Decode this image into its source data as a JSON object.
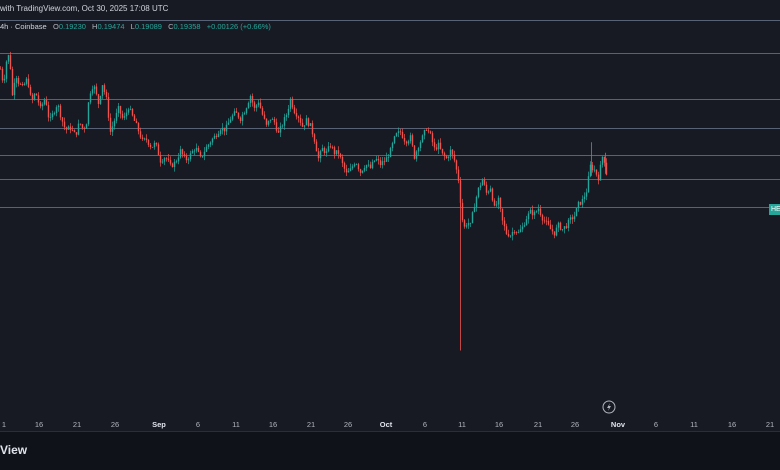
{
  "header": {
    "published_text": "with TradingView.com, Oct 30, 2025 17:08 UTC",
    "interval_exchange": "4h · Coinbase",
    "ohlc": {
      "o_label": "O",
      "o_value": "0.19230",
      "h_label": "H",
      "h_value": "0.19474",
      "l_label": "L",
      "l_value": "0.19089",
      "c_label": "C",
      "c_value": "0.19358",
      "change": "+0.00126 (+0.66%)"
    }
  },
  "price_tag": {
    "label": "HE",
    "color": "#26a69a"
  },
  "footer": {
    "logo_text": "View"
  },
  "colors": {
    "background": "#171a23",
    "up": "#26a69a",
    "down": "#ef5350",
    "level_line": "#8a9bb8",
    "axis_text": "#b2b5be"
  },
  "icons": {
    "replay": "lightning-icon"
  },
  "chart_data": {
    "type": "candlestick",
    "interval": "4h",
    "exchange": "Coinbase",
    "x_ticks": [
      {
        "label": "1"
      },
      {
        "label": "16"
      },
      {
        "label": "21"
      },
      {
        "label": "26"
      },
      {
        "label": "Sep",
        "major": true
      },
      {
        "label": "6"
      },
      {
        "label": "11"
      },
      {
        "label": "16"
      },
      {
        "label": "21"
      },
      {
        "label": "26"
      },
      {
        "label": "Oct",
        "major": true
      },
      {
        "label": "6"
      },
      {
        "label": "11"
      },
      {
        "label": "16"
      },
      {
        "label": "21"
      },
      {
        "label": "26"
      },
      {
        "label": "Nov",
        "major": true
      },
      {
        "label": "6"
      },
      {
        "label": "11"
      },
      {
        "label": "16"
      },
      {
        "label": "21"
      }
    ],
    "ylim": [
      0.09,
      0.29
    ],
    "horizontal_levels": [
      0.2795,
      0.262,
      0.238,
      0.223,
      0.2088,
      0.1964,
      0.1815
    ],
    "path": [
      [
        0,
        0.254
      ],
      [
        3,
        0.246
      ],
      [
        6,
        0.258
      ],
      [
        9,
        0.262
      ],
      [
        12,
        0.24
      ],
      [
        15,
        0.252
      ],
      [
        18,
        0.247
      ],
      [
        22,
        0.244
      ],
      [
        27,
        0.249
      ],
      [
        31,
        0.236
      ],
      [
        35,
        0.242
      ],
      [
        40,
        0.233
      ],
      [
        45,
        0.239
      ],
      [
        49,
        0.226
      ],
      [
        53,
        0.231
      ],
      [
        57,
        0.236
      ],
      [
        61,
        0.228
      ],
      [
        65,
        0.222
      ],
      [
        70,
        0.223
      ],
      [
        75,
        0.219
      ],
      [
        79,
        0.226
      ],
      [
        83,
        0.222
      ],
      [
        86,
        0.226
      ],
      [
        89,
        0.241
      ],
      [
        93,
        0.246
      ],
      [
        98,
        0.236
      ],
      [
        102,
        0.246
      ],
      [
        106,
        0.238
      ],
      [
        110,
        0.221
      ],
      [
        114,
        0.227
      ],
      [
        118,
        0.233
      ],
      [
        123,
        0.227
      ],
      [
        128,
        0.234
      ],
      [
        132,
        0.229
      ],
      [
        137,
        0.223
      ],
      [
        142,
        0.216
      ],
      [
        146,
        0.217
      ],
      [
        151,
        0.213
      ],
      [
        155,
        0.215
      ],
      [
        160,
        0.206
      ],
      [
        165,
        0.208
      ],
      [
        170,
        0.203
      ],
      [
        175,
        0.205
      ],
      [
        180,
        0.211
      ],
      [
        185,
        0.206
      ],
      [
        190,
        0.209
      ],
      [
        195,
        0.213
      ],
      [
        200,
        0.207
      ],
      [
        205,
        0.212
      ],
      [
        210,
        0.216
      ],
      [
        215,
        0.219
      ],
      [
        220,
        0.223
      ],
      [
        225,
        0.222
      ],
      [
        230,
        0.228
      ],
      [
        235,
        0.231
      ],
      [
        240,
        0.228
      ],
      [
        245,
        0.233
      ],
      [
        250,
        0.24
      ],
      [
        254,
        0.233
      ],
      [
        258,
        0.237
      ],
      [
        262,
        0.23
      ],
      [
        266,
        0.224
      ],
      [
        270,
        0.228
      ],
      [
        274,
        0.226
      ],
      [
        278,
        0.22
      ],
      [
        282,
        0.225
      ],
      [
        286,
        0.23
      ],
      [
        290,
        0.238
      ],
      [
        294,
        0.232
      ],
      [
        298,
        0.229
      ],
      [
        302,
        0.224
      ],
      [
        306,
        0.227
      ],
      [
        310,
        0.224
      ],
      [
        314,
        0.217
      ],
      [
        318,
        0.207
      ],
      [
        322,
        0.212
      ],
      [
        326,
        0.21
      ],
      [
        330,
        0.214
      ],
      [
        334,
        0.21
      ],
      [
        338,
        0.21
      ],
      [
        342,
        0.204
      ],
      [
        346,
        0.199
      ],
      [
        350,
        0.201
      ],
      [
        355,
        0.206
      ],
      [
        360,
        0.2
      ],
      [
        365,
        0.204
      ],
      [
        370,
        0.202
      ],
      [
        375,
        0.207
      ],
      [
        380,
        0.204
      ],
      [
        385,
        0.206
      ],
      [
        390,
        0.211
      ],
      [
        395,
        0.219
      ],
      [
        400,
        0.221
      ],
      [
        405,
        0.216
      ],
      [
        410,
        0.218
      ],
      [
        414,
        0.208
      ],
      [
        418,
        0.214
      ],
      [
        422,
        0.218
      ],
      [
        426,
        0.223
      ],
      [
        430,
        0.219
      ],
      [
        434,
        0.212
      ],
      [
        438,
        0.214
      ],
      [
        442,
        0.209
      ],
      [
        446,
        0.207
      ],
      [
        450,
        0.211
      ],
      [
        454,
        0.206
      ],
      [
        458,
        0.196
      ],
      [
        460,
        0.185
      ],
      [
        462,
        0.175
      ],
      [
        464,
        0.171
      ],
      [
        467,
        0.174
      ],
      [
        470,
        0.172
      ],
      [
        474,
        0.183
      ],
      [
        478,
        0.191
      ],
      [
        482,
        0.196
      ],
      [
        486,
        0.189
      ],
      [
        490,
        0.192
      ],
      [
        494,
        0.181
      ],
      [
        498,
        0.185
      ],
      [
        502,
        0.174
      ],
      [
        506,
        0.168
      ],
      [
        510,
        0.167
      ],
      [
        514,
        0.17
      ],
      [
        518,
        0.168
      ],
      [
        522,
        0.171
      ],
      [
        526,
        0.176
      ],
      [
        530,
        0.179
      ],
      [
        534,
        0.178
      ],
      [
        538,
        0.181
      ],
      [
        542,
        0.176
      ],
      [
        546,
        0.173
      ],
      [
        550,
        0.17
      ],
      [
        554,
        0.168
      ],
      [
        558,
        0.172
      ],
      [
        562,
        0.17
      ],
      [
        566,
        0.172
      ],
      [
        570,
        0.175
      ],
      [
        574,
        0.177
      ],
      [
        578,
        0.183
      ],
      [
        582,
        0.185
      ],
      [
        586,
        0.19
      ],
      [
        590,
        0.203
      ],
      [
        594,
        0.201
      ],
      [
        598,
        0.197
      ],
      [
        602,
        0.208
      ],
      [
        605,
        0.205
      ],
      [
        607,
        0.1936
      ]
    ],
    "extreme_wicks": [
      {
        "position": 460,
        "high": 0.196,
        "low": 0.1065
      },
      {
        "position": 591,
        "high": 0.2155,
        "low": 0.198
      },
      {
        "position": 605,
        "high": 0.21,
        "low": 0.199
      }
    ]
  }
}
